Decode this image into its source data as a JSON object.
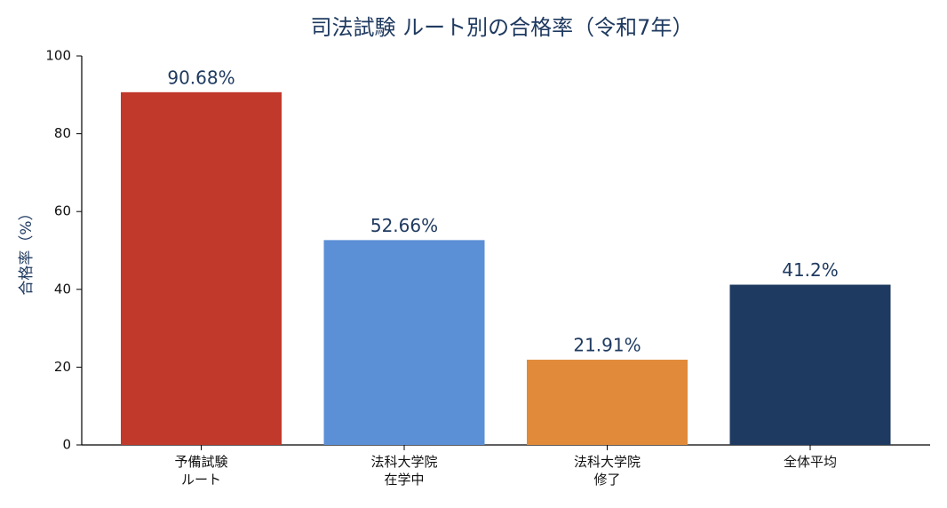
{
  "chart_data": {
    "type": "bar",
    "title": "司法試験 ルート別の合格率（令和7年）",
    "y_label": "合格率（%）",
    "categories": [
      "予備試験\nルート",
      "法科大学院\n在学中",
      "法科大学院\n修了",
      "全体平均"
    ],
    "values": [
      90.68,
      52.66,
      21.91,
      41.2
    ],
    "value_labels": [
      "90.68%",
      "52.66%",
      "21.91%",
      "41.2%"
    ],
    "colors": [
      "#c0392b",
      "#5b8fd6",
      "#e08a3a",
      "#1f3a60"
    ],
    "ylim": [
      0,
      100
    ],
    "yticks": [
      0,
      20,
      40,
      60,
      80,
      100
    ],
    "grid": false
  }
}
